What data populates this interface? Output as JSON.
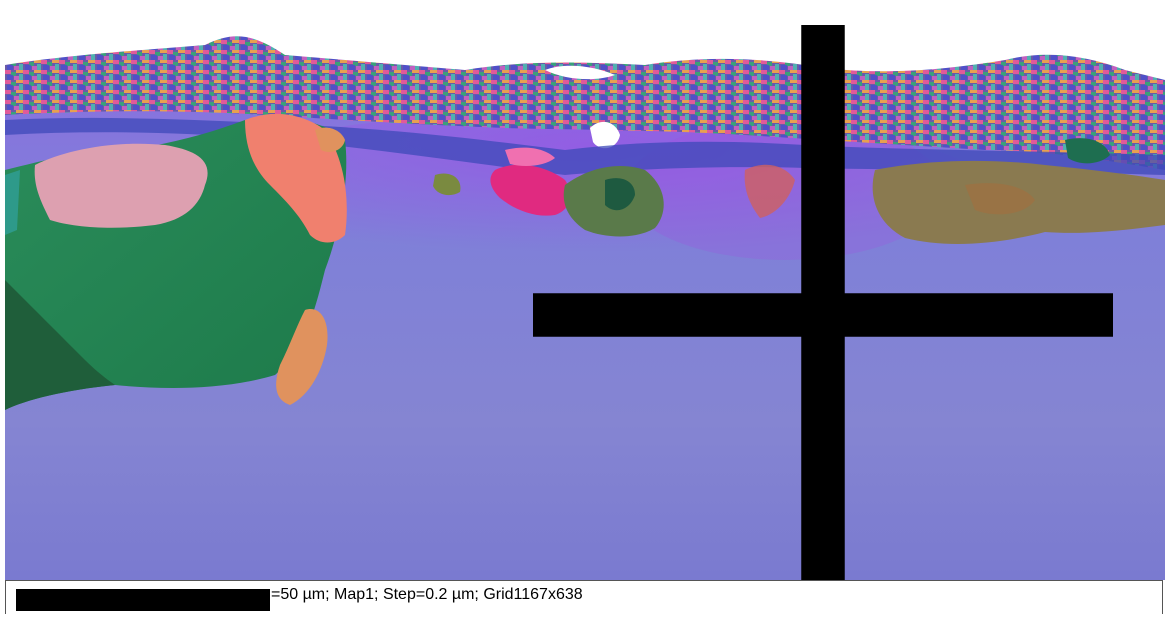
{
  "map": {
    "name": "Map1",
    "colors": {
      "matrix_violet": "#7f7fd6",
      "grain_green": "#248a5a",
      "grain_salmon": "#f07e6e",
      "grain_pink": "#e0a0c0",
      "grain_orange": "#e8925a",
      "grain_magenta": "#e0307a",
      "grain_olive": "#7a8a40"
    }
  },
  "status_bar": {
    "text": "=50 µm; Map1; Step=0.2 µm; Grid1167x638"
  },
  "cursor": {
    "icon": "crosshair-icon"
  }
}
